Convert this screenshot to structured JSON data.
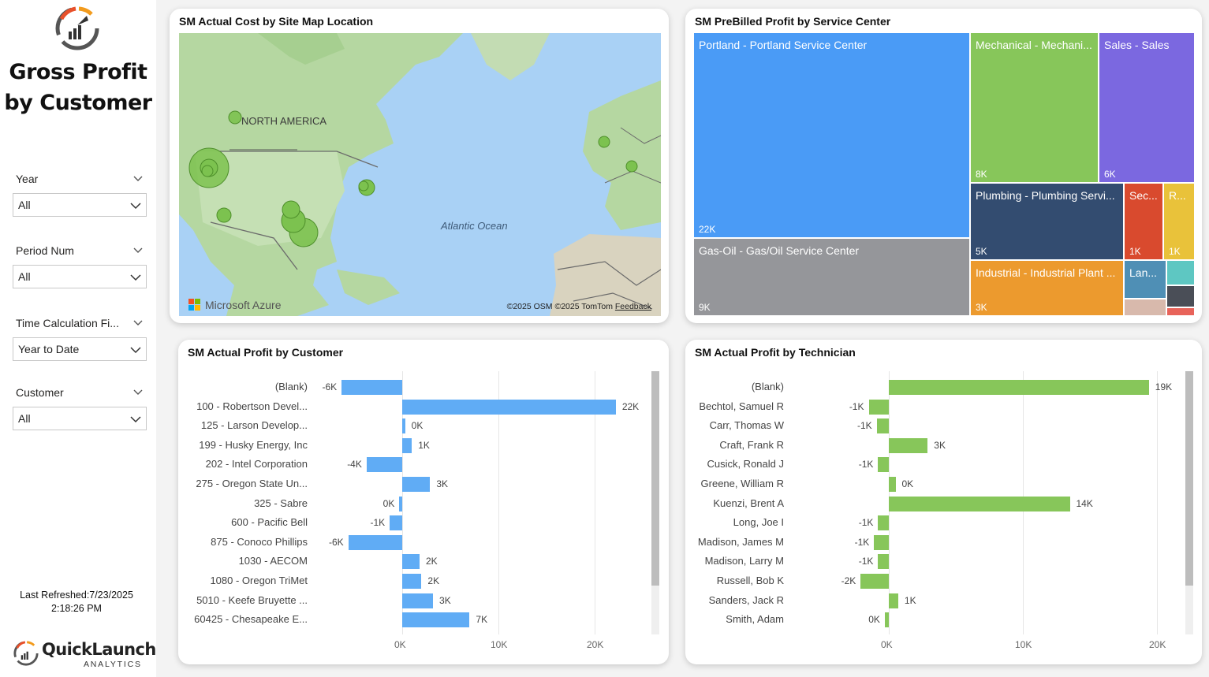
{
  "sidebar": {
    "title_line1": "Gross Profit",
    "title_line2": "by Customer",
    "slicers": [
      {
        "label": "Year",
        "value": "All"
      },
      {
        "label": "Period Num",
        "value": "All"
      },
      {
        "label": "Time Calculation Fi...",
        "value": "Year to Date"
      },
      {
        "label": "Customer",
        "value": "All"
      }
    ],
    "refresh_line1": "Last Refreshed:7/23/2025",
    "refresh_line2": "2:18:26 PM",
    "brand_name": "QuickLaunch",
    "brand_sub": "ANALYTICS"
  },
  "map_card": {
    "title": "SM Actual Cost by Site Map Location",
    "label_continent": "NORTH AMERICA",
    "label_ocean": "Atlantic Ocean",
    "provider": "Microsoft Azure",
    "copyright": "©2025 OSM  ©2025 TomTom",
    "feedback": "Feedback"
  },
  "treemap_card": {
    "title": "SM PreBilled Profit by Service Center",
    "tiles": [
      {
        "label": "Portland - Portland Service Center",
        "value": "22K",
        "color": "#4a9bf6"
      },
      {
        "label": "Gas-Oil - Gas/Oil Service Center",
        "value": "9K",
        "color": "#95969a"
      },
      {
        "label": "Mechanical - Mechani...",
        "value": "8K",
        "color": "#87c65a"
      },
      {
        "label": "Sales - Sales",
        "value": "6K",
        "color": "#7b68e0"
      },
      {
        "label": "Plumbing - Plumbing Servi...",
        "value": "5K",
        "color": "#334c70"
      },
      {
        "label": "Sec...",
        "value": "1K",
        "color": "#d94a2e"
      },
      {
        "label": "R...",
        "value": "1K",
        "color": "#e9c23a"
      },
      {
        "label": "Industrial - Industrial Plant ...",
        "value": "3K",
        "color": "#ec9a2e"
      },
      {
        "label": "Lan...",
        "value": "",
        "color": "#4f8fb5"
      }
    ]
  },
  "customer_card": {
    "title": "SM Actual Profit by Customer",
    "ticks": [
      "0K",
      "10K",
      "20K"
    ],
    "bar_color": "#60acf5"
  },
  "technician_card": {
    "title": "SM Actual Profit by Technician",
    "ticks": [
      "0K",
      "10K",
      "20K"
    ],
    "bar_color": "#87c65a"
  },
  "chart_data": [
    {
      "type": "bar",
      "orientation": "horizontal",
      "title": "SM Actual Profit by Customer",
      "categories": [
        "(Blank)",
        "100 - Robertson Devel...",
        "125 - Larson Develop...",
        "199 - Husky Energy, Inc",
        "202 - Intel Corporation",
        "275 - Oregon State Un...",
        "325 - Sabre",
        "600 - Pacific Bell",
        "875 - Conoco Phillips",
        "1030 - AECOM",
        "1080 - Oregon TriMet",
        "5010 - Keefe Bruyette ...",
        "60425 - Chesapeake E..."
      ],
      "values": [
        -6300,
        22200,
        300,
        1000,
        -3700,
        2900,
        -300,
        -1300,
        -5600,
        1800,
        2000,
        3200,
        7000
      ],
      "data_labels": [
        "-6K",
        "22K",
        "0K",
        "1K",
        "-4K",
        "3K",
        "0K",
        "-1K",
        "-6K",
        "2K",
        "2K",
        "3K",
        "7K"
      ],
      "xlim": [
        -6300,
        26000
      ],
      "xticks": [
        0,
        10000,
        20000
      ]
    },
    {
      "type": "bar",
      "orientation": "horizontal",
      "title": "SM Actual Profit by Technician",
      "categories": [
        "(Blank)",
        "Bechtol, Samuel R",
        "Carr, Thomas W",
        "Craft, Frank R",
        "Cusick, Ronald J",
        "Greene, William R",
        "Kuenzi, Brent A",
        "Long, Joe I",
        "Madison, James M",
        "Madison, Larry M",
        "Russell, Bob K",
        "Sanders, Jack R",
        "Smith, Adam"
      ],
      "values": [
        19400,
        -1500,
        -900,
        2900,
        -800,
        500,
        13500,
        -800,
        -1100,
        -800,
        -2100,
        700,
        -300
      ],
      "data_labels": [
        "19K",
        "-1K",
        "-1K",
        "3K",
        "-1K",
        "0K",
        "14K",
        "-1K",
        "-1K",
        "-1K",
        "-2K",
        "1K",
        "0K"
      ],
      "xlim": [
        -2100,
        21000
      ],
      "xticks": [
        0,
        10000,
        20000
      ]
    }
  ]
}
